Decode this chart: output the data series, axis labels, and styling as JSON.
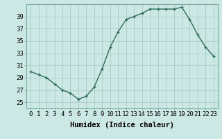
{
  "x": [
    0,
    1,
    2,
    3,
    4,
    5,
    6,
    7,
    8,
    9,
    10,
    11,
    12,
    13,
    14,
    15,
    16,
    17,
    18,
    19,
    20,
    21,
    22,
    23
  ],
  "y": [
    30,
    29.5,
    29,
    28,
    27,
    26.5,
    25.5,
    26,
    27.5,
    30.5,
    34,
    36.5,
    38.5,
    39,
    39.5,
    40.2,
    40.2,
    40.2,
    40.2,
    40.5,
    38.5,
    36,
    34,
    32.5
  ],
  "line_color": "#2d6b5e",
  "marker_color": "#2d6b5e",
  "bg_color": "#cce8e4",
  "grid_color": "#aaccc8",
  "xlabel": "Humidex (Indice chaleur)",
  "xlim": [
    -0.5,
    23.5
  ],
  "ylim": [
    24.0,
    41.0
  ],
  "yticks": [
    25,
    27,
    29,
    31,
    33,
    35,
    37,
    39
  ],
  "xtick_labels": [
    "0",
    "1",
    "2",
    "3",
    "4",
    "5",
    "6",
    "7",
    "8",
    "9",
    "10",
    "11",
    "12",
    "13",
    "14",
    "15",
    "16",
    "17",
    "18",
    "19",
    "20",
    "21",
    "22",
    "23"
  ],
  "label_fontsize": 7.5,
  "tick_fontsize": 6.5
}
